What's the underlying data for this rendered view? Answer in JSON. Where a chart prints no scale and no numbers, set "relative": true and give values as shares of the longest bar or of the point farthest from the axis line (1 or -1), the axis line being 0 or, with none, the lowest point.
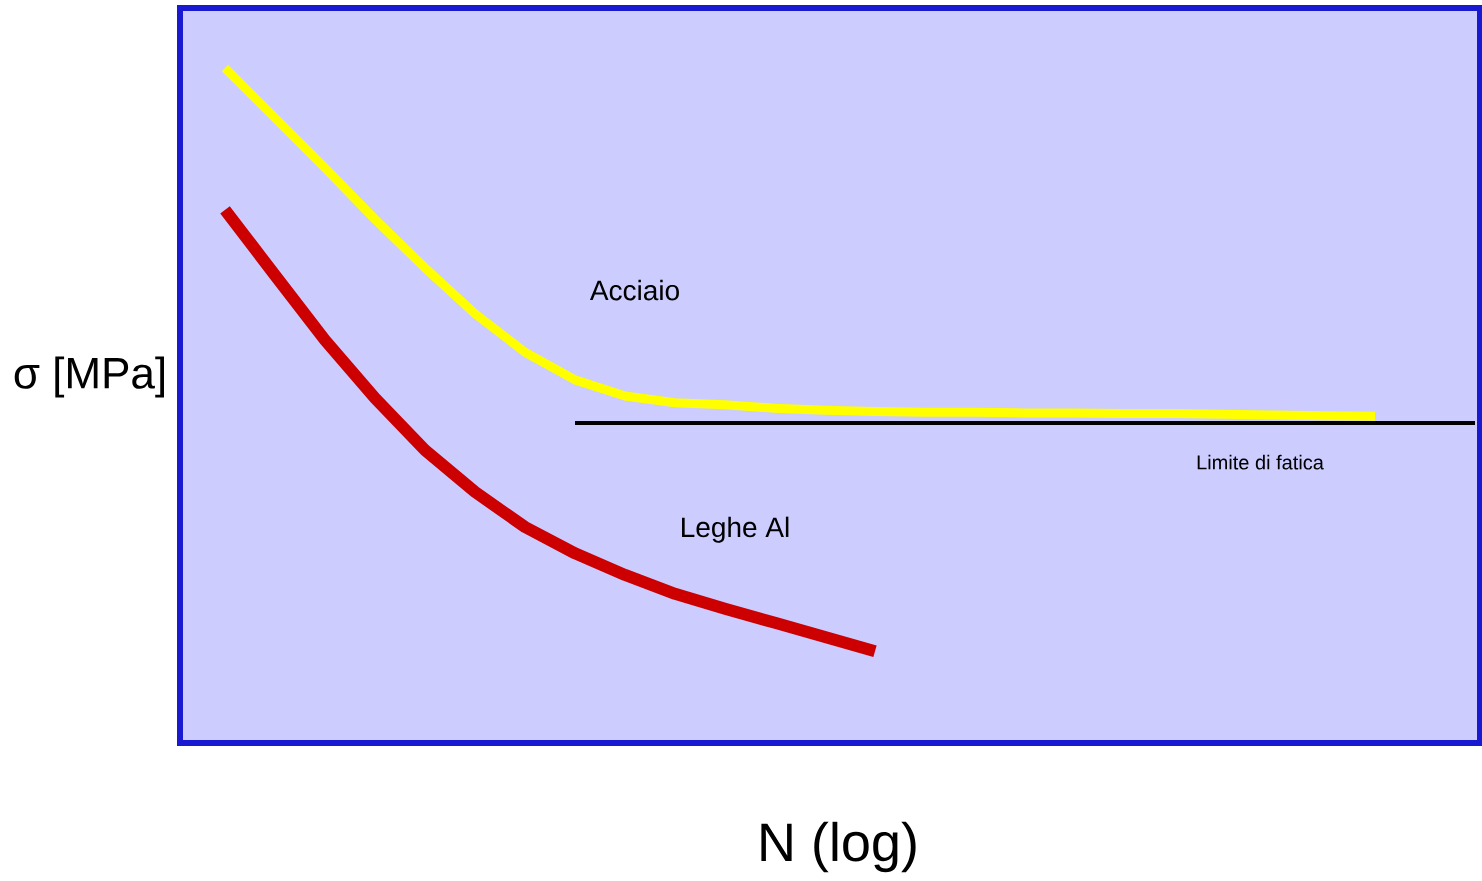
{
  "chart_data": {
    "type": "line",
    "relative": true,
    "xlabel": "N (log)",
    "ylabel": "σ [MPa]",
    "categories": [
      null,
      null,
      null,
      null,
      null,
      null,
      null,
      null,
      null,
      null,
      null,
      null,
      null,
      null,
      null,
      null,
      null,
      null,
      null,
      null,
      null,
      null,
      null,
      null,
      null,
      null
    ],
    "series": [
      {
        "name": "Acciaio",
        "color": "#ffff00",
        "values": [
          1.0,
          0.926,
          0.852,
          0.776,
          0.704,
          0.636,
          0.579,
          0.538,
          0.514,
          0.504,
          0.501,
          0.496,
          0.493,
          0.491,
          0.49,
          0.49,
          0.489,
          0.489,
          0.488,
          0.488,
          0.487,
          0.486,
          0.485,
          0.484,
          null,
          null
        ]
      },
      {
        "name": "Leghe Al",
        "color": "#cc0000",
        "values": [
          0.79,
          0.693,
          0.597,
          0.511,
          0.434,
          0.372,
          0.32,
          0.281,
          0.249,
          0.221,
          0.199,
          0.178,
          0.157,
          0.136,
          null,
          null,
          null,
          null,
          null,
          null,
          null,
          null,
          null,
          null,
          null,
          null
        ]
      },
      {
        "name": "Limite di fatica",
        "color": "#000000",
        "values": [
          null,
          null,
          null,
          null,
          null,
          null,
          null,
          0.474,
          0.474,
          0.474,
          0.474,
          0.474,
          0.474,
          0.474,
          0.474,
          0.474,
          0.474,
          0.474,
          0.474,
          0.474,
          0.474,
          0.474,
          0.474,
          0.474,
          0.474,
          0.474
        ]
      }
    ]
  }
}
